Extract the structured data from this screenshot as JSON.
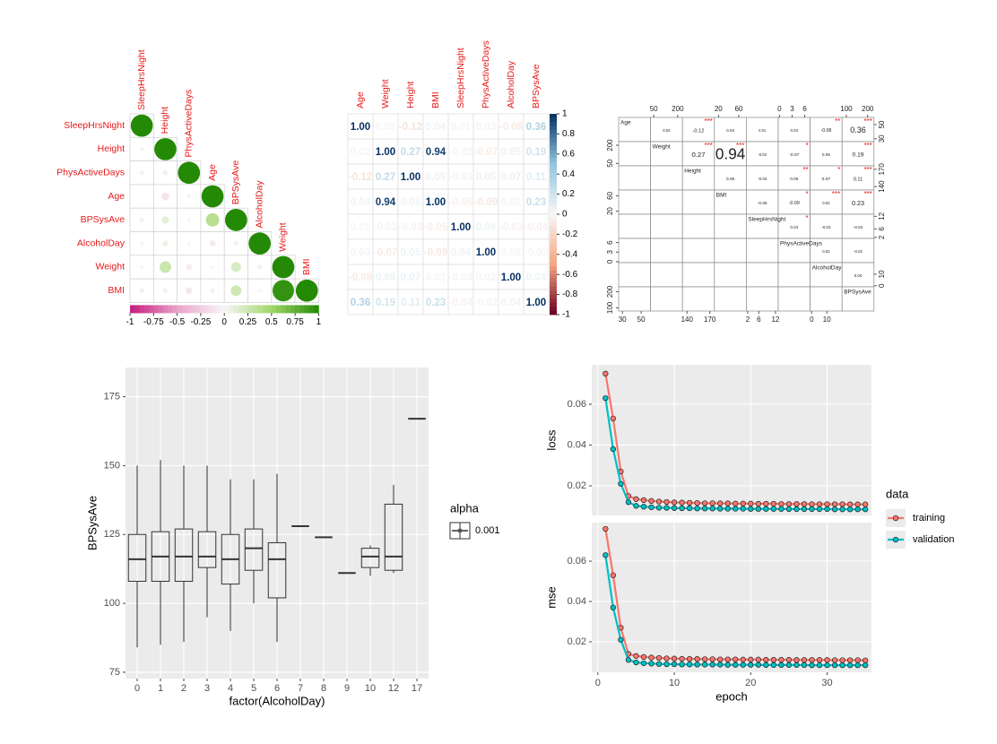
{
  "chart_data": [
    {
      "type": "corrplot_circle",
      "variables": [
        "SleepHrsNight",
        "Height",
        "PhysActiveDays",
        "Age",
        "BPSysAve",
        "AlcoholDay",
        "Weight",
        "BMI"
      ],
      "values": [
        [
          1
        ],
        [
          -0.03,
          1
        ],
        [
          0.04,
          0.05,
          1
        ],
        [
          0.01,
          -0.12,
          0.03,
          1
        ],
        [
          -0.04,
          0.11,
          -0.02,
          0.36,
          1
        ],
        [
          -0.03,
          0.07,
          0.02,
          -0.08,
          0.04,
          1
        ],
        [
          -0.02,
          0.27,
          -0.07,
          0.02,
          0.19,
          0.05,
          1
        ],
        [
          -0.05,
          0.05,
          -0.09,
          0.04,
          0.23,
          0.02,
          0.94,
          1
        ]
      ],
      "colors": [
        "#c51b7d",
        "#e9a3c9",
        "#f7f7f7",
        "#a1d76a",
        "#248a05"
      ],
      "colorbar_ticks": [
        -1,
        -0.75,
        -0.5,
        -0.25,
        0,
        0.25,
        0.5,
        0.75,
        1
      ]
    },
    {
      "type": "corrplot_number",
      "variables": [
        "Age",
        "Weight",
        "Height",
        "BMI",
        "SleepHrsNight",
        "PhysActiveDays",
        "AlcoholDay",
        "BPSysAve"
      ],
      "values": [
        [
          1,
          0.02,
          -0.12,
          0.04,
          0.01,
          0.03,
          -0.08,
          0.36
        ],
        [
          0.02,
          1,
          0.27,
          0.94,
          -0.02,
          -0.07,
          0.05,
          0.19
        ],
        [
          -0.12,
          0.27,
          1,
          0.05,
          -0.03,
          0.05,
          0.07,
          0.11
        ],
        [
          0.04,
          0.94,
          0.05,
          1,
          -0.05,
          -0.09,
          0.02,
          0.23
        ],
        [
          0.01,
          -0.02,
          -0.03,
          -0.05,
          1,
          0.04,
          -0.03,
          -0.04
        ],
        [
          0.03,
          -0.07,
          0.05,
          -0.09,
          0.04,
          1,
          0.02,
          -0.02
        ],
        [
          -0.08,
          0.05,
          0.07,
          0.02,
          -0.03,
          0.02,
          1,
          0.04
        ],
        [
          0.36,
          0.19,
          0.11,
          0.23,
          -0.04,
          -0.02,
          0.04,
          1
        ]
      ],
      "value_labels": [
        [
          "1.00",
          "0.02",
          "-0.12",
          "0.04",
          "0.01",
          "0.03",
          "-0.08",
          "0.36"
        ],
        [
          "0.02",
          "1.00",
          "0.27",
          "0.94",
          "-0.02",
          "-0.07",
          "0.05",
          "0.19"
        ],
        [
          "-0.12",
          "0.27",
          "1.00",
          "0.05",
          "-0.03",
          "0.05",
          "0.07",
          "0.11"
        ],
        [
          "0.04",
          "0.94",
          "0.05",
          "1.00",
          "-0.05",
          "-0.09",
          "0.02",
          "0.23"
        ],
        [
          "0.01",
          "-0.02",
          "-0.03",
          "-0.05",
          "1.00",
          "0.04",
          "-0.03",
          "-0.04"
        ],
        [
          "0.03",
          "-0.07",
          "0.05",
          "-0.09",
          "0.04",
          "1.00",
          "0.02",
          "-0.02"
        ],
        [
          "-0.08",
          "0.05",
          "0.07",
          "0.02",
          "-0.03",
          "0.02",
          "1.00",
          "0.04"
        ],
        [
          "0.36",
          "0.19",
          "0.11",
          "0.23",
          "-0.04",
          "-0.02",
          "0.04",
          "1.00"
        ]
      ],
      "colors": [
        "#67001f",
        "#f4a582",
        "#f7f7f7",
        "#92c5de",
        "#053061"
      ],
      "colorbar_ticks": [
        1,
        0.8,
        0.6,
        0.4,
        0.2,
        0,
        -0.2,
        -0.4,
        -0.6,
        -0.8,
        -1
      ]
    },
    {
      "type": "pairs",
      "variables": [
        "Age",
        "Weight",
        "Height",
        "BMI",
        "SleepHrsNight",
        "PhysActiveDays",
        "AlcoholDay",
        "BPSysAve"
      ],
      "correlations": [
        [
          0.02,
          -0.12,
          0.04,
          0.01,
          0.03,
          -0.08,
          0.36
        ],
        [
          0.27,
          0.94,
          -0.02,
          -0.07,
          0.05,
          0.19
        ],
        [
          0.05,
          -0.03,
          0.05,
          0.07,
          0.11
        ],
        [
          -0.05,
          -0.09,
          0.02,
          0.23
        ],
        [
          0.04,
          -0.03,
          -0.04
        ],
        [
          0.02,
          -0.02
        ],
        [
          0.04
        ]
      ],
      "stars": [
        [
          null,
          "***",
          null,
          null,
          null,
          "**",
          "***"
        ],
        [
          "***",
          "***",
          null,
          "*",
          null,
          "***"
        ],
        [
          null,
          null,
          "**",
          "*",
          "***"
        ],
        [
          null,
          "*",
          "***",
          "***"
        ],
        [
          "*",
          null,
          null
        ],
        [
          null,
          null
        ],
        [
          null
        ]
      ],
      "lims": [
        [
          26,
          60
        ],
        [
          30,
          230
        ],
        [
          134,
          176
        ],
        [
          12,
          75
        ],
        [
          1.5,
          13
        ],
        [
          -0.3,
          7.3
        ],
        [
          -1,
          20
        ],
        [
          80,
          230
        ]
      ],
      "axis_ticks": [
        [
          30,
          50
        ],
        [
          50,
          200
        ],
        [
          140,
          170
        ],
        [
          20,
          60
        ],
        [
          2,
          6,
          12
        ],
        [
          0,
          3,
          6
        ],
        [
          0,
          10
        ],
        [
          100,
          200
        ]
      ]
    },
    {
      "type": "box",
      "categories": [
        "0",
        "1",
        "2",
        "3",
        "4",
        "5",
        "6",
        "7",
        "8",
        "9",
        "10",
        "12",
        "17"
      ],
      "whisker_low": [
        84,
        85,
        86,
        95,
        90,
        100,
        86,
        128,
        124,
        111,
        110,
        111,
        167
      ],
      "q1": [
        108,
        108,
        108,
        113,
        107,
        112,
        102,
        128,
        124,
        111,
        113,
        112,
        167
      ],
      "median": [
        116,
        117,
        117,
        117,
        116,
        120,
        116,
        128,
        124,
        111,
        117,
        117,
        167
      ],
      "q3": [
        125,
        126,
        127,
        126,
        125,
        127,
        122,
        128,
        124,
        111,
        120,
        136,
        167
      ],
      "whisker_high": [
        150,
        152,
        150,
        150,
        145,
        145,
        147,
        128,
        124,
        111,
        121,
        143,
        167
      ],
      "ylim": [
        72.7,
        185.6
      ],
      "yticks": [
        75,
        100,
        125,
        150,
        175
      ],
      "xlabel": "factor(AlcoholDay)",
      "ylabel": "BPSysAve",
      "legend_title": "alpha",
      "legend_labels": [
        "0.001"
      ],
      "grid": true
    },
    {
      "type": "facet_line",
      "x": [
        1,
        2,
        3,
        4,
        5,
        6,
        7,
        8,
        9,
        10,
        11,
        12,
        13,
        14,
        15,
        16,
        17,
        18,
        19,
        20,
        21,
        22,
        23,
        24,
        25,
        26,
        27,
        28,
        29,
        30,
        31,
        32,
        33,
        34,
        35
      ],
      "xlim": [
        -0.8,
        35.8
      ],
      "xticks": [
        0,
        10,
        20,
        30
      ],
      "xlabel": "epoch",
      "legend_title": "data",
      "grid": true,
      "panels": [
        {
          "name": "loss",
          "ylim": [
            0.0055,
            0.0793
          ],
          "yticks": [
            0.02,
            0.04,
            0.06
          ],
          "series": [
            {
              "name": "training",
              "color": "#F8766D",
              "values": [
                0.075,
                0.053,
                0.027,
                0.015,
                0.0135,
                0.013,
                0.0126,
                0.0123,
                0.0121,
                0.0119,
                0.0118,
                0.0117,
                0.0116,
                0.0115,
                0.0115,
                0.0114,
                0.0114,
                0.0113,
                0.0113,
                0.0113,
                0.0112,
                0.0112,
                0.0112,
                0.0111,
                0.0111,
                0.0111,
                0.0111,
                0.011,
                0.011,
                0.011,
                0.011,
                0.011,
                0.0109,
                0.0109,
                0.0109
              ]
            },
            {
              "name": "validation",
              "color": "#00BFC4",
              "values": [
                0.063,
                0.038,
                0.021,
                0.012,
                0.0102,
                0.0098,
                0.0095,
                0.0093,
                0.0092,
                0.0091,
                0.009,
                0.009,
                0.0089,
                0.0089,
                0.0089,
                0.0088,
                0.0088,
                0.0088,
                0.0088,
                0.0087,
                0.0087,
                0.0087,
                0.0087,
                0.0087,
                0.0086,
                0.0086,
                0.0086,
                0.0086,
                0.0086,
                0.0086,
                0.0085,
                0.0085,
                0.0085,
                0.0085,
                0.0085
              ]
            }
          ]
        },
        {
          "name": "mse",
          "ylim": [
            0.0049,
            0.0791
          ],
          "yticks": [
            0.02,
            0.04,
            0.06
          ],
          "series": [
            {
              "name": "training",
              "color": "#F8766D",
              "values": [
                0.076,
                0.053,
                0.027,
                0.014,
                0.013,
                0.0125,
                0.0122,
                0.012,
                0.0118,
                0.0117,
                0.0116,
                0.0115,
                0.0115,
                0.0114,
                0.0114,
                0.0113,
                0.0113,
                0.0113,
                0.0112,
                0.0112,
                0.0112,
                0.0111,
                0.0111,
                0.0111,
                0.0111,
                0.011,
                0.011,
                0.011,
                0.011,
                0.011,
                0.0109,
                0.0109,
                0.0109,
                0.0109,
                0.0108
              ]
            },
            {
              "name": "validation",
              "color": "#00BFC4",
              "values": [
                0.063,
                0.037,
                0.021,
                0.011,
                0.0098,
                0.0094,
                0.0092,
                0.009,
                0.0089,
                0.0089,
                0.0088,
                0.0088,
                0.0087,
                0.0087,
                0.0087,
                0.0087,
                0.0086,
                0.0086,
                0.0086,
                0.0086,
                0.0086,
                0.0085,
                0.0085,
                0.0085,
                0.0085,
                0.0085,
                0.0085,
                0.0084,
                0.0084,
                0.0084,
                0.0084,
                0.0084,
                0.0084,
                0.0084,
                0.0084
              ]
            }
          ]
        }
      ]
    }
  ]
}
